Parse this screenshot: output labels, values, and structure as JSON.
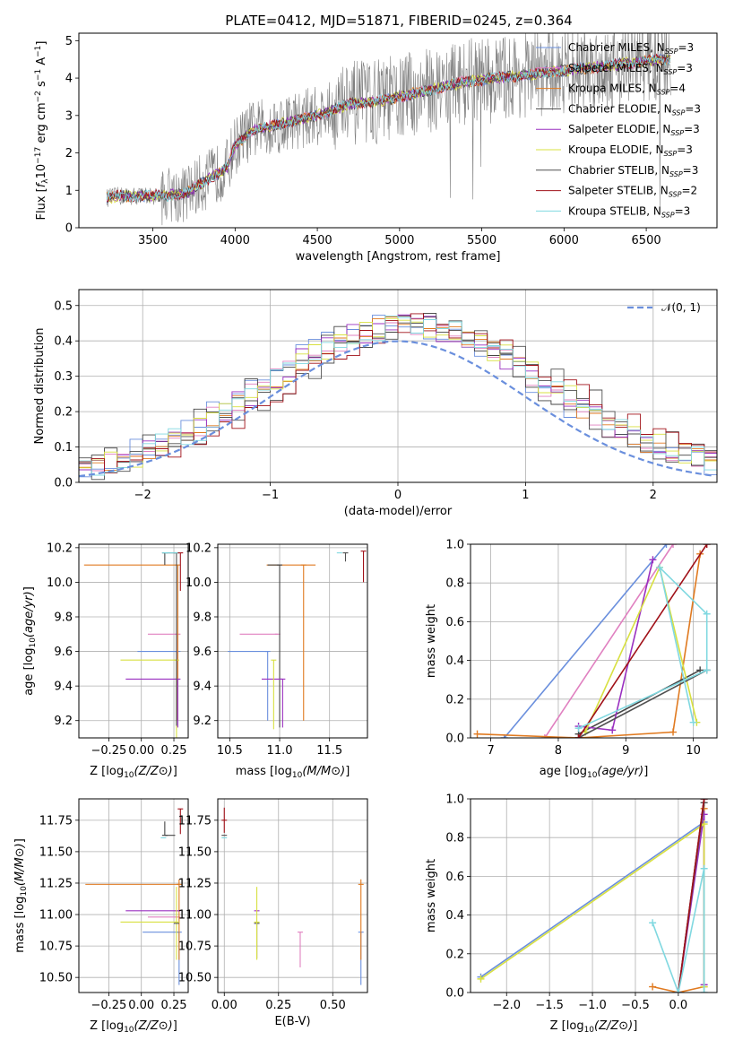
{
  "figure_title": "PLATE=0412, MJD=51871, FIBERID=0245, z=0.364",
  "colors": {
    "Chabrier MILES": "#6a8fdd",
    "Salpeter MILES": "#e080c0",
    "Kroupa MILES": "#e07a20",
    "Chabrier ELODIE": "#444444",
    "Salpeter ELODIE": "#9a30c0",
    "Kroupa ELODIE": "#d8e040",
    "Chabrier STELIB": "#505050",
    "Salpeter STELIB": "#a01018",
    "Kroupa STELIB": "#80d8e0",
    "data": "#808080",
    "gaussian": "#6a8fdd"
  },
  "chart_data": [
    {
      "id": "spectrum",
      "type": "line",
      "title": "PLATE=0412, MJD=51871, FIBERID=0245, z=0.364",
      "xlabel": "wavelength [Angstrom, rest frame]",
      "ylabel": "Flux [f_λ 10^-17 erg cm^-2 s^-1 A^-1]",
      "xlim": [
        3050,
        6930
      ],
      "ylim": [
        0,
        5.2
      ],
      "xticks": [
        3500,
        4000,
        4500,
        5000,
        5500,
        6000,
        6500
      ],
      "yticks": [
        0,
        1,
        2,
        3,
        4,
        5
      ],
      "legend_position": "top-right",
      "legend": [
        "Chabrier MILES, N_SSP=3",
        "Salpeter MILES, N_SSP=3",
        "Kroupa MILES, N_SSP=4",
        "Chabrier ELODIE, N_SSP=3",
        "Salpeter ELODIE, N_SSP=3",
        "Kroupa ELODIE, N_SSP=3",
        "Chabrier STELIB, N_SSP=3",
        "Salpeter STELIB, N_SSP=2",
        "Kroupa STELIB, N_SSP=3"
      ],
      "model_continuum": {
        "x": [
          3220,
          3300,
          3500,
          3700,
          3800,
          3950,
          4000,
          4100,
          4300,
          4500,
          4700,
          4900,
          5000,
          5200,
          5400,
          5600,
          5800,
          6000,
          6200,
          6400,
          6600
        ],
        "y": [
          0.8,
          0.85,
          0.85,
          0.9,
          1.2,
          1.6,
          2.2,
          2.6,
          2.8,
          3.0,
          3.3,
          3.4,
          3.5,
          3.7,
          3.9,
          4.0,
          4.1,
          4.2,
          4.3,
          4.4,
          4.5
        ]
      }
    },
    {
      "id": "residuals",
      "type": "bar",
      "xlabel": "(data-model)/error",
      "ylabel": "Normed distribution",
      "xlim": [
        -2.5,
        2.5
      ],
      "ylim": [
        0,
        0.545
      ],
      "xticks": [
        -2,
        -1,
        0,
        1,
        2
      ],
      "yticks": [
        0.0,
        0.1,
        0.2,
        0.3,
        0.4,
        0.5
      ],
      "legend": [
        "𝒩(0, 1)"
      ],
      "legend_position": "top-right",
      "gaussian": {
        "mean": 0,
        "sigma": 1
      }
    },
    {
      "id": "age-vs-Z",
      "type": "scatter",
      "xlabel": "Z [log10(Z/Z⊙)]",
      "ylabel": "age  [log10(age/yr)]",
      "xlim": [
        -0.48,
        0.36
      ],
      "ylim": [
        9.1,
        10.22
      ],
      "xticks": [
        -0.25,
        0.0,
        0.25
      ],
      "yticks": [
        9.2,
        9.4,
        9.6,
        9.8,
        10.0,
        10.2
      ],
      "series": [
        {
          "name": "Chabrier MILES",
          "x": 0.28,
          "y": 9.6,
          "xerr": [
            0.31,
            0.0
          ],
          "yerr": [
            0.4,
            0.0
          ]
        },
        {
          "name": "Salpeter MILES",
          "x": 0.28,
          "y": 9.7,
          "xerr": [
            0.23,
            0.0
          ],
          "yerr": [
            0.5,
            0.0
          ]
        },
        {
          "name": "Kroupa MILES",
          "x": 0.28,
          "y": 10.1,
          "xerr": [
            0.72,
            0.0
          ],
          "yerr": [
            0.9,
            0.0
          ]
        },
        {
          "name": "Chabrier ELODIE",
          "x": 0.18,
          "y": 10.17,
          "xerr": [
            0.0,
            0.0
          ],
          "yerr": [
            0.07,
            0.0
          ]
        },
        {
          "name": "Salpeter ELODIE",
          "x": 0.28,
          "y": 9.44,
          "xerr": [
            0.4,
            0.0
          ],
          "yerr": [
            0.28,
            0.0
          ]
        },
        {
          "name": "Kroupa ELODIE",
          "x": 0.27,
          "y": 9.55,
          "xerr": [
            0.43,
            0.0
          ],
          "yerr": [
            0.45,
            0.0
          ]
        },
        {
          "name": "Chabrier STELIB",
          "x": 0.27,
          "y": 10.17,
          "xerr": [
            0.08,
            0.0
          ],
          "yerr": [
            1.0,
            0.0
          ]
        },
        {
          "name": "Salpeter STELIB",
          "x": 0.3,
          "y": 10.17,
          "xerr": [
            0.0,
            0.0
          ],
          "yerr": [
            0.22,
            0.0
          ]
        },
        {
          "name": "Kroupa STELIB",
          "x": 0.18,
          "y": 10.17,
          "xerr": [
            0.0,
            0.1
          ],
          "yerr": [
            0.0,
            0.0
          ]
        }
      ]
    },
    {
      "id": "age-vs-mass",
      "type": "scatter",
      "xlabel": "mass [log10(M/M⊙)]",
      "ylabel": "",
      "xlim": [
        10.38,
        11.88
      ],
      "ylim": [
        9.1,
        10.22
      ],
      "xticks": [
        10.5,
        11.0,
        11.5
      ],
      "yticks": [
        9.2,
        9.4,
        9.6,
        9.8,
        10.0,
        10.2
      ],
      "series": [
        {
          "name": "Chabrier MILES",
          "x": 10.88,
          "y": 9.6,
          "xerr": [
            0.4,
            0.0
          ],
          "yerr": [
            0.4,
            0.0
          ]
        },
        {
          "name": "Salpeter MILES",
          "x": 10.98,
          "y": 9.7,
          "xerr": [
            0.38,
            0.0
          ],
          "yerr": [
            0.0,
            0.0
          ]
        },
        {
          "name": "Kroupa MILES",
          "x": 11.24,
          "y": 10.1,
          "xerr": [
            0.37,
            0.12
          ],
          "yerr": [
            0.9,
            0.0
          ]
        },
        {
          "name": "Chabrier ELODIE",
          "x": 11.0,
          "y": 10.1,
          "xerr": [
            0.12,
            0.0
          ],
          "yerr": [
            0.94,
            0.0
          ]
        },
        {
          "name": "Salpeter ELODIE",
          "x": 11.03,
          "y": 9.44,
          "xerr": [
            0.21,
            0.0
          ],
          "yerr": [
            0.28,
            0.0
          ]
        },
        {
          "name": "Kroupa ELODIE",
          "x": 10.94,
          "y": 9.55,
          "xerr": [
            0.0,
            0.0
          ],
          "yerr": [
            0.4,
            0.0
          ]
        },
        {
          "name": "Chabrier STELIB",
          "x": 11.66,
          "y": 10.17,
          "xerr": [
            0.0,
            0.0
          ],
          "yerr": [
            0.05,
            0.0
          ]
        },
        {
          "name": "Salpeter STELIB",
          "x": 11.84,
          "y": 10.18,
          "xerr": [
            0.0,
            0.0
          ],
          "yerr": [
            0.18,
            0.0
          ]
        },
        {
          "name": "Kroupa STELIB",
          "x": 11.6,
          "y": 10.17,
          "xerr": [
            0.0,
            0.0
          ],
          "yerr": [
            0.0,
            0.0
          ]
        }
      ]
    },
    {
      "id": "weight-vs-age",
      "type": "line",
      "xlabel": "age  [log10(age/yr)]",
      "ylabel": "mass weight",
      "xlim": [
        6.7,
        10.35
      ],
      "ylim": [
        0,
        1.0
      ],
      "xticks": [
        7,
        8,
        9,
        10
      ],
      "yticks": [
        0.0,
        0.2,
        0.4,
        0.6,
        0.8,
        1.0
      ],
      "series": [
        {
          "name": "Chabrier MILES",
          "x": [
            7.2,
            9.6
          ],
          "y": [
            0.0,
            1.0
          ]
        },
        {
          "name": "Salpeter MILES",
          "x": [
            7.8,
            9.7
          ],
          "y": [
            0.0,
            1.0
          ]
        },
        {
          "name": "Kroupa MILES",
          "x": [
            6.8,
            8.3,
            9.7,
            10.1
          ],
          "y": [
            0.02,
            0.0,
            0.03,
            0.95
          ]
        },
        {
          "name": "Chabrier ELODIE",
          "x": [
            8.3,
            10.1
          ],
          "y": [
            0.02,
            0.35
          ]
        },
        {
          "name": "Salpeter ELODIE",
          "x": [
            8.3,
            8.8,
            9.4
          ],
          "y": [
            0.06,
            0.04,
            0.92
          ]
        },
        {
          "name": "Kroupa ELODIE",
          "x": [
            8.4,
            9.5,
            10.05
          ],
          "y": [
            0.03,
            0.88,
            0.08
          ]
        },
        {
          "name": "Chabrier STELIB",
          "x": [
            8.3,
            10.2
          ],
          "y": [
            0.0,
            0.35
          ]
        },
        {
          "name": "Salpeter STELIB",
          "x": [
            8.3,
            10.2
          ],
          "y": [
            0.0,
            1.0
          ]
        },
        {
          "name": "Kroupa STELIB",
          "x": [
            8.3,
            10.2,
            10.2,
            9.5,
            10.0
          ],
          "y": [
            0.05,
            0.35,
            0.64,
            0.88,
            0.08
          ]
        }
      ]
    },
    {
      "id": "mass-vs-Z",
      "type": "scatter",
      "xlabel": "Z [log10(Z/Z⊙)]",
      "ylabel": "mass [log10(M/M⊙)]",
      "xlim": [
        -0.48,
        0.36
      ],
      "ylim": [
        10.38,
        11.92
      ],
      "xticks": [
        -0.25,
        0.0,
        0.25
      ],
      "yticks": [
        10.5,
        10.75,
        11.0,
        11.25,
        11.5,
        11.75
      ],
      "series": [
        {
          "name": "Chabrier MILES",
          "x": 0.29,
          "y": 10.86,
          "xerr": [
            0.28,
            0.0
          ],
          "yerr": [
            0.42,
            0.0
          ]
        },
        {
          "name": "Salpeter MILES",
          "x": 0.28,
          "y": 10.98,
          "xerr": [
            0.23,
            0.0
          ],
          "yerr": [
            0.0,
            0.0
          ]
        },
        {
          "name": "Kroupa MILES",
          "x": 0.29,
          "y": 11.24,
          "xerr": [
            0.72,
            0.0
          ],
          "yerr": [
            0.6,
            0.04
          ]
        },
        {
          "name": "Chabrier ELODIE",
          "x": 0.18,
          "y": 11.63,
          "xerr": [
            0.0,
            0.08
          ],
          "yerr": [
            0.0,
            0.11
          ]
        },
        {
          "name": "Salpeter ELODIE",
          "x": 0.28,
          "y": 11.03,
          "xerr": [
            0.4,
            0.0
          ],
          "yerr": [
            0.0,
            0.0
          ]
        },
        {
          "name": "Kroupa ELODIE",
          "x": 0.27,
          "y": 10.94,
          "xerr": [
            0.43,
            0.0
          ],
          "yerr": [
            0.3,
            0.28
          ]
        },
        {
          "name": "Chabrier STELIB",
          "x": 0.27,
          "y": 10.93,
          "xerr": [
            0.0,
            0.0
          ],
          "yerr": [
            0.0,
            0.0
          ]
        },
        {
          "name": "Salpeter STELIB",
          "x": 0.3,
          "y": 11.84,
          "xerr": [
            0.0,
            0.0
          ],
          "yerr": [
            0.2,
            0.0
          ]
        },
        {
          "name": "Kroupa STELIB",
          "x": 0.17,
          "y": 11.61,
          "xerr": [
            0.0,
            0.0
          ],
          "yerr": [
            0.0,
            0.0
          ]
        }
      ]
    },
    {
      "id": "mass-vs-ebv",
      "type": "scatter",
      "xlabel": "E(B-V)",
      "ylabel": "",
      "xlim": [
        -0.03,
        0.66
      ],
      "ylim": [
        10.38,
        11.92
      ],
      "xticks": [
        0.0,
        0.25,
        0.5
      ],
      "yticks": [
        10.5,
        10.75,
        11.0,
        11.25,
        11.5,
        11.75
      ],
      "series": [
        {
          "name": "Chabrier MILES",
          "x": 0.63,
          "y": 10.86,
          "xerr": [
            0.0,
            0.0
          ],
          "yerr": [
            0.42,
            0.0
          ]
        },
        {
          "name": "Salpeter MILES",
          "x": 0.35,
          "y": 10.86,
          "xerr": [
            0.0,
            0.0
          ],
          "yerr": [
            0.28,
            0.0
          ]
        },
        {
          "name": "Kroupa MILES",
          "x": 0.63,
          "y": 11.24,
          "xerr": [
            0.0,
            0.0
          ],
          "yerr": [
            0.6,
            0.04
          ]
        },
        {
          "name": "Chabrier ELODIE",
          "x": 0.15,
          "y": 10.93,
          "xerr": [
            0.0,
            0.0
          ],
          "yerr": [
            0.28,
            0.0
          ]
        },
        {
          "name": "Salpeter ELODIE",
          "x": 0.15,
          "y": 11.03,
          "xerr": [
            0.0,
            0.0
          ],
          "yerr": [
            0.0,
            0.0
          ]
        },
        {
          "name": "Kroupa ELODIE",
          "x": 0.15,
          "y": 10.94,
          "xerr": [
            0.0,
            0.0
          ],
          "yerr": [
            0.3,
            0.28
          ]
        },
        {
          "name": "Chabrier STELIB",
          "x": 0.0,
          "y": 11.63,
          "xerr": [
            0.0,
            0.0
          ],
          "yerr": [
            0.0,
            0.0
          ]
        },
        {
          "name": "Salpeter STELIB",
          "x": 0.0,
          "y": 11.75,
          "xerr": [
            0.0,
            0.0
          ],
          "yerr": [
            0.1,
            0.1
          ]
        },
        {
          "name": "Kroupa STELIB",
          "x": 0.0,
          "y": 11.61,
          "xerr": [
            0.0,
            0.0
          ],
          "yerr": [
            0.0,
            0.0
          ]
        }
      ]
    },
    {
      "id": "weight-vs-Z",
      "type": "line",
      "xlabel": "Z [log10(Z/Z⊙)]",
      "ylabel": "mass weight",
      "xlim": [
        -2.42,
        0.45
      ],
      "ylim": [
        0,
        1.0
      ],
      "xticks": [
        -2.0,
        -1.5,
        -1.0,
        -0.5,
        0.0
      ],
      "yticks": [
        0.0,
        0.2,
        0.4,
        0.6,
        0.8,
        1.0
      ],
      "series": [
        {
          "name": "Chabrier MILES",
          "x": [
            -2.3,
            0.3
          ],
          "y": [
            0.08,
            0.88
          ]
        },
        {
          "name": "Salpeter MILES",
          "x": [
            0.0,
            0.3
          ],
          "y": [
            0.0,
            1.0
          ]
        },
        {
          "name": "Kroupa MILES",
          "x": [
            -0.3,
            0.0,
            0.3,
            0.3
          ],
          "y": [
            0.03,
            0.0,
            0.03,
            0.95
          ]
        },
        {
          "name": "Chabrier ELODIE",
          "x": [
            0.0,
            0.3
          ],
          "y": [
            0.0,
            1.0
          ]
        },
        {
          "name": "Salpeter ELODIE",
          "x": [
            0.0,
            0.3,
            0.3
          ],
          "y": [
            0.0,
            0.92,
            0.04
          ]
        },
        {
          "name": "Kroupa ELODIE",
          "x": [
            -2.3,
            0.3,
            0.3
          ],
          "y": [
            0.07,
            0.87,
            0.03
          ]
        },
        {
          "name": "Chabrier STELIB",
          "x": [
            0.0,
            0.3
          ],
          "y": [
            0.0,
            0.98
          ]
        },
        {
          "name": "Salpeter STELIB",
          "x": [
            0.0,
            0.3
          ],
          "y": [
            0.0,
            1.0
          ]
        },
        {
          "name": "Kroupa STELIB",
          "x": [
            -0.3,
            0.0,
            0.3,
            0.3
          ],
          "y": [
            0.36,
            0.0,
            0.64,
            0.0
          ]
        }
      ]
    }
  ]
}
